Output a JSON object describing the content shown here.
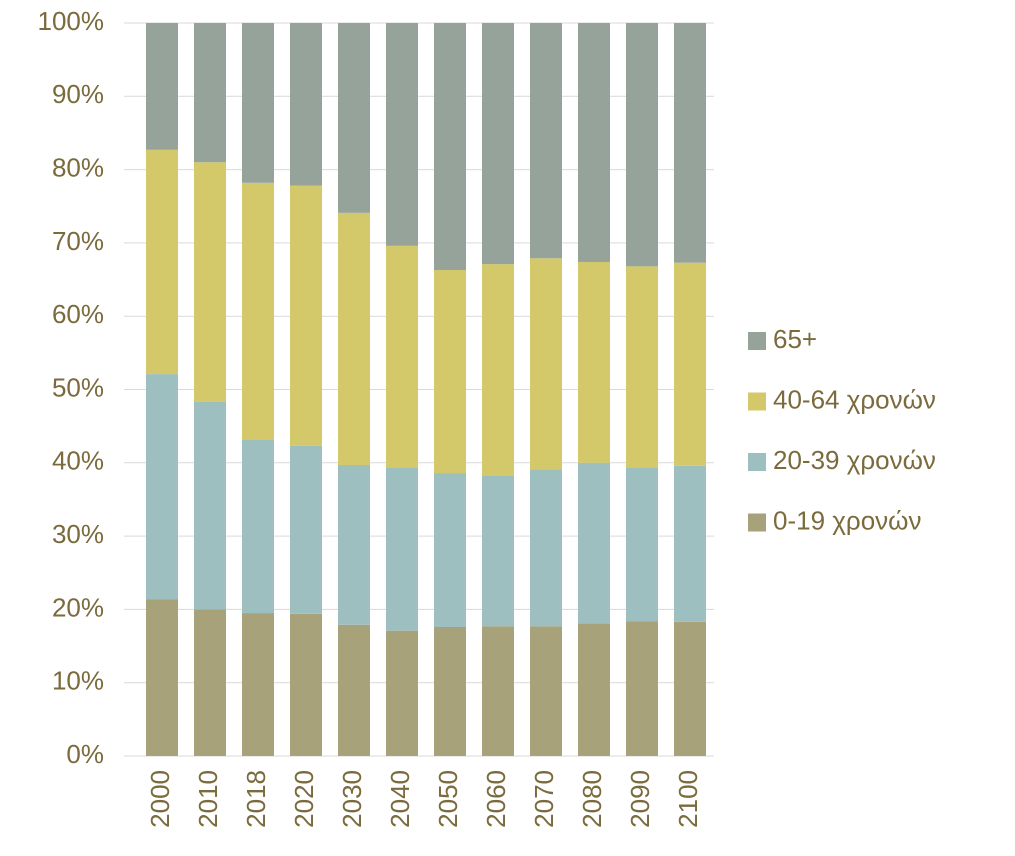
{
  "chart_data": {
    "type": "stacked_bar",
    "categories": [
      "2000",
      "2010",
      "2018",
      "2020",
      "2030",
      "2040",
      "2050",
      "2060",
      "2070",
      "2080",
      "2090",
      "2100"
    ],
    "series": [
      {
        "name": "0-19 χρονών",
        "color": "#a8a27a",
        "values": [
          21.4,
          20.0,
          19.5,
          19.4,
          17.9,
          17.1,
          17.6,
          17.7,
          17.7,
          18.1,
          18.4,
          18.3
        ]
      },
      {
        "name": "20-39 χρονών",
        "color": "#9dbfbf",
        "values": [
          30.7,
          28.3,
          23.7,
          22.9,
          21.8,
          22.3,
          21.0,
          20.5,
          21.4,
          21.9,
          21.0,
          21.3
        ]
      },
      {
        "name": "40-64 χρονών",
        "color": "#d4c96a",
        "values": [
          30.6,
          32.7,
          35.0,
          35.5,
          34.4,
          30.2,
          27.7,
          28.9,
          28.8,
          27.4,
          27.4,
          27.7
        ]
      },
      {
        "name": "65+",
        "color": "#95a39b",
        "values": [
          17.3,
          19.0,
          21.8,
          22.2,
          25.9,
          30.4,
          33.7,
          32.9,
          32.1,
          32.6,
          33.2,
          32.7
        ]
      }
    ],
    "ylim": [
      0,
      100
    ],
    "yticks": [
      {
        "value": 0,
        "label": "0%"
      },
      {
        "value": 10,
        "label": "10%"
      },
      {
        "value": 20,
        "label": "20%"
      },
      {
        "value": 30,
        "label": "30%"
      },
      {
        "value": 40,
        "label": "40%"
      },
      {
        "value": 50,
        "label": "50%"
      },
      {
        "value": 60,
        "label": "60%"
      },
      {
        "value": 70,
        "label": "70%"
      },
      {
        "value": 80,
        "label": "80%"
      },
      {
        "value": 90,
        "label": "90%"
      },
      {
        "value": 100,
        "label": "100%"
      }
    ],
    "grid": true,
    "legend": "right"
  }
}
